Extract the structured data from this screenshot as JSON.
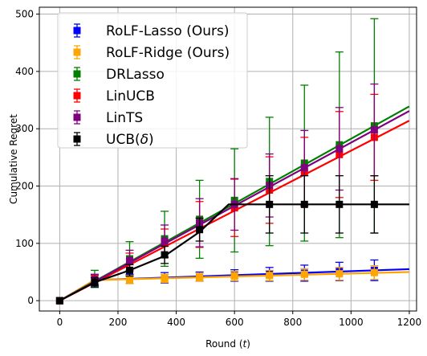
{
  "chart_data": {
    "type": "line",
    "title": "",
    "xlabel": "Round (",
    "xlabel_var": "t",
    "xlabel_close": ")",
    "ylabel": "Cumulative Regret",
    "xlim": [
      -70,
      1225
    ],
    "ylim": [
      -18,
      512
    ],
    "xticks": [
      0,
      200,
      400,
      600,
      800,
      1000,
      1200
    ],
    "yticks": [
      0,
      100,
      200,
      300,
      400,
      500
    ],
    "grid": true,
    "legend_position": "top-left",
    "series": [
      {
        "name": "RoLF-Lasso (Ours)",
        "color": "#0000ff",
        "line": [
          [
            0,
            0
          ],
          [
            120,
            36
          ],
          [
            1200,
            55
          ]
        ],
        "x": [
          120,
          240,
          360,
          480,
          600,
          720,
          840,
          960,
          1080
        ],
        "y": [
          36,
          38,
          40,
          42,
          44,
          46,
          48,
          51,
          53
        ],
        "err": [
          10,
          8,
          9,
          8,
          10,
          12,
          14,
          16,
          18
        ]
      },
      {
        "name": "RoLF-Ridge (Ours)",
        "color": "#ffa500",
        "line": [
          [
            0,
            0
          ],
          [
            120,
            36
          ],
          [
            1200,
            50
          ]
        ],
        "x": [
          120,
          240,
          360,
          480,
          600,
          720,
          840,
          960,
          1080
        ],
        "y": [
          36,
          37,
          39,
          41,
          43,
          44,
          46,
          47,
          49
        ],
        "err": [
          8,
          7,
          7,
          7,
          8,
          9,
          10,
          11,
          12
        ]
      },
      {
        "name": "DRLasso",
        "color": "#008000",
        "line": [
          [
            0,
            0
          ],
          [
            1200,
            339
          ]
        ],
        "x": [
          120,
          240,
          360,
          480,
          600,
          720,
          840,
          960,
          1080
        ],
        "y": [
          38,
          73,
          108,
          142,
          175,
          208,
          240,
          272,
          305
        ],
        "err": [
          15,
          30,
          48,
          68,
          90,
          112,
          136,
          162,
          187
        ]
      },
      {
        "name": "LinUCB",
        "color": "#ff0000",
        "line": [
          [
            0,
            0
          ],
          [
            1200,
            314
          ]
        ],
        "x": [
          120,
          240,
          360,
          480,
          600,
          720,
          840,
          960,
          1080
        ],
        "y": [
          36,
          68,
          100,
          133,
          162,
          193,
          225,
          255,
          285
        ],
        "err": [
          8,
          15,
          25,
          40,
          50,
          58,
          60,
          75,
          75
        ]
      },
      {
        "name": "LinTS",
        "color": "#800080",
        "line": [
          [
            0,
            0
          ],
          [
            1200,
            331
          ]
        ],
        "x": [
          120,
          240,
          360,
          480,
          600,
          720,
          840,
          960,
          1080
        ],
        "y": [
          37,
          70,
          104,
          136,
          168,
          201,
          232,
          265,
          298
        ],
        "err": [
          9,
          18,
          28,
          42,
          45,
          55,
          65,
          72,
          80
        ]
      },
      {
        "name": "UCB(",
        "name_var": "δ",
        "name_close": ")",
        "color": "#000000",
        "line": [
          [
            0,
            0
          ],
          [
            120,
            32
          ],
          [
            240,
            53
          ],
          [
            360,
            78
          ],
          [
            480,
            120
          ],
          [
            580,
            168
          ],
          [
            1200,
            168
          ]
        ],
        "x": [
          120,
          240,
          360,
          480,
          720,
          840,
          960,
          1080
        ],
        "y": [
          32,
          53,
          80,
          124,
          168,
          168,
          168,
          168
        ],
        "err": [
          8,
          10,
          15,
          20,
          50,
          50,
          50,
          50
        ]
      }
    ]
  }
}
